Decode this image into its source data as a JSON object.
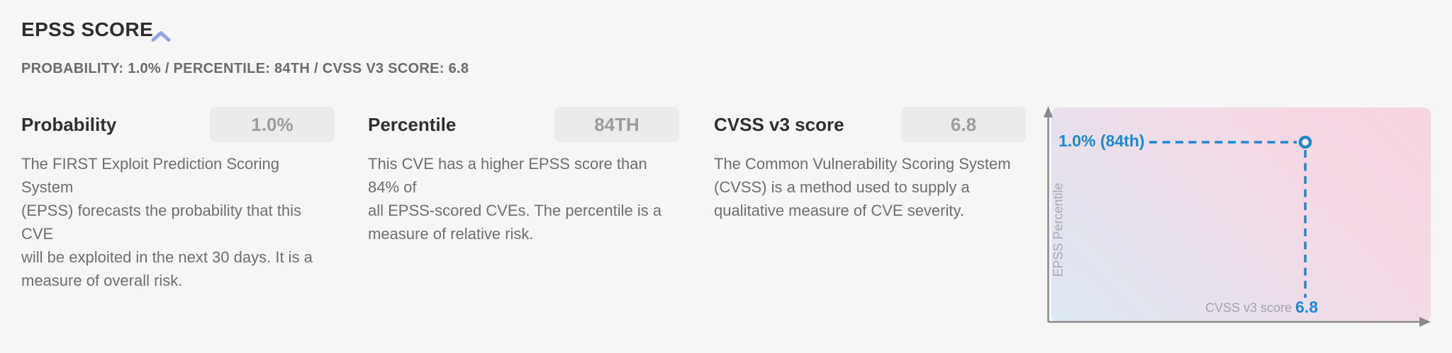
{
  "header": {
    "title": "EPSS SCORE",
    "subtitle": "PROBABILITY: 1.0% / PERCENTILE: 84TH / CVSS V3 SCORE: 6.8"
  },
  "metrics": [
    {
      "label": "Probability",
      "value": "1.0%",
      "description_lines": [
        "The FIRST Exploit Prediction Scoring System",
        "(EPSS) forecasts the probability that this CVE",
        "will be exploited in the next 30 days. It is a",
        "measure of overall risk."
      ]
    },
    {
      "label": "Percentile",
      "value": "84TH",
      "description_lines": [
        "This CVE has a higher EPSS score than 84% of",
        "all EPSS-scored CVEs. The percentile is a",
        "measure of relative risk."
      ]
    },
    {
      "label": "CVSS v3 score",
      "value": "6.8",
      "description_lines": [
        "The Common Vulnerability Scoring System",
        "(CVSS) is a method used to supply a",
        "qualitative measure of CVE severity."
      ]
    }
  ],
  "chart_data": {
    "type": "scatter",
    "xlabel": "CVSS v3 score",
    "ylabel": "EPSS Percentile",
    "x_range": [
      0,
      10
    ],
    "y_range": [
      0,
      100
    ],
    "points": [
      {
        "x": 6.8,
        "y_percentile": 84,
        "probability": "1.0%"
      }
    ],
    "point_label": "1.0% (84th)",
    "x_value_label": "6.8",
    "legend": "none",
    "grid": false
  },
  "icons": {
    "collapse": "chevron-up-icon"
  },
  "colors": {
    "accent_blue": "#1e87d2",
    "chevron_blue": "#8fa7dc",
    "badge_bg": "#ebebeb",
    "badge_text": "#9c9c9c",
    "axis_gray": "#8a8a8a",
    "axis_label_gray": "#a3a3a8",
    "gradient_top_right": "#f8d3e1",
    "gradient_bottom_left": "#dce8f2",
    "page_bg": "#f6f6f7"
  }
}
